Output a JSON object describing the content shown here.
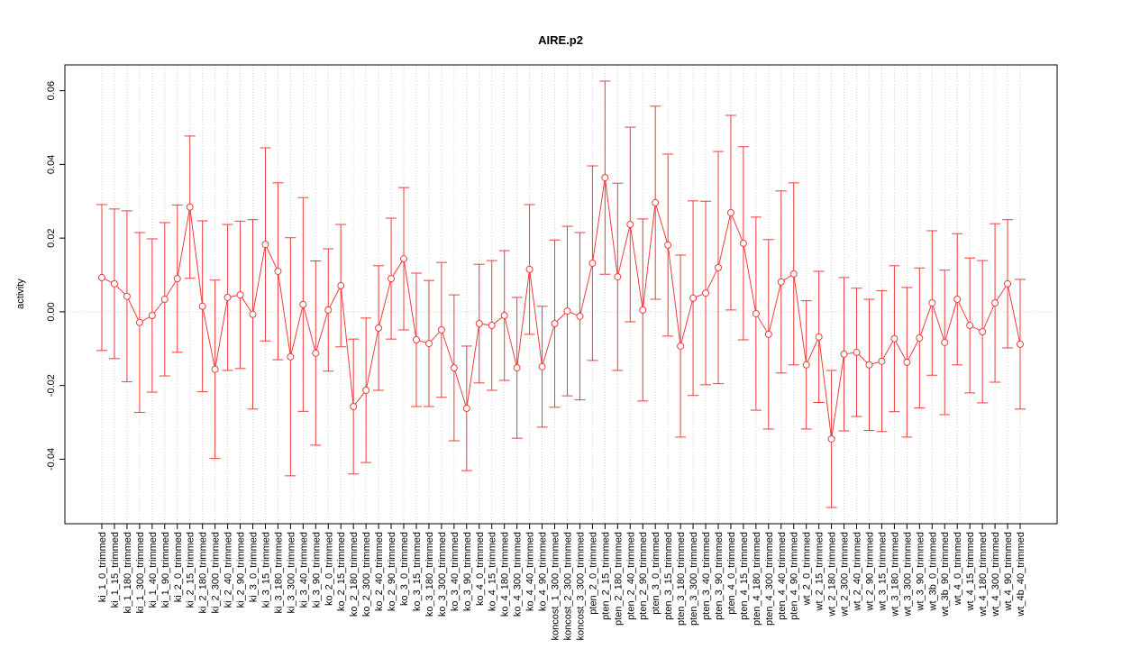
{
  "chart_data": {
    "type": "errorbar_line",
    "title": "AIRE.p2",
    "y_label": "activity",
    "categories": [
      "ki_1_0_trimmed",
      "ki_1_15_trimmed",
      "ki_1_180_trimmed",
      "ki_1_300_trimmed",
      "ki_1_40_trimmed",
      "ki_1_90_trimmed",
      "ki_2_0_trimmed",
      "ki_2_15_trimmed",
      "ki_2_180_trimmed",
      "ki_2_300_trimmed",
      "ki_2_40_trimmed",
      "ki_2_90_trimmed",
      "ki_3_0_trimmed",
      "ki_3_15_trimmed",
      "ki_3_180_trimmed",
      "ki_3_300_trimmed",
      "ki_3_40_trimmed",
      "ki_3_90_trimmed",
      "ko_2_0_trimmed",
      "ko_2_15_trimmed",
      "ko_2_180_trimmed",
      "ko_2_300_trimmed",
      "ko_2_40_trimmed",
      "ko_2_90_trimmed",
      "ko_3_0_trimmed",
      "ko_3_15_trimmed",
      "ko_3_180_trimmed",
      "ko_3_300_trimmed",
      "ko_3_40_trimmed",
      "ko_3_90_trimmed",
      "ko_4_0_trimmed",
      "ko_4_15_trimmed",
      "ko_4_180_trimmed",
      "ko_4_300_trimmed",
      "ko_4_40_trimmed",
      "ko_4_90_trimmed",
      "koncost_1_300_trimmed",
      "koncost_2_300_trimmed",
      "koncost_3_300_trimmed",
      "pten_2_0_trimmed",
      "pten_2_15_trimmed",
      "pten_2_180_trimmed",
      "pten_2_40_trimmed",
      "pten_2_90_trimmed",
      "pten_3_0_trimmed",
      "pten_3_15_trimmed",
      "pten_3_180_trimmed",
      "pten_3_300_trimmed",
      "pten_3_40_trimmed",
      "pten_3_90_trimmed",
      "pten_4_0_trimmed",
      "pten_4_15_trimmed",
      "pten_4_180_trimmed",
      "pten_4_300_trimmed",
      "pten_4_40_trimmed",
      "pten_4_90_trimmed",
      "wt_2_0_trimmed",
      "wt_2_15_trimmed",
      "wt_2_180_trimmed",
      "wt_2_300_trimmed",
      "wt_2_40_trimmed",
      "wt_2_90_trimmed",
      "wt_3_15_trimmed",
      "wt_3_180_trimmed",
      "wt_3_300_trimmed",
      "wt_3_90_trimmed",
      "wt_3b_0_trimmed",
      "wt_3b_90_trimmed",
      "wt_4_0_trimmed",
      "wt_4_15_trimmed",
      "wt_4_180_trimmed",
      "wt_4_300_trimmed",
      "wt_4_90_trimmed",
      "wt_4b_40_trimmed"
    ],
    "values": [
      0.0093,
      0.0076,
      0.0042,
      -0.0029,
      -0.001,
      0.0034,
      0.009,
      0.0284,
      0.0015,
      -0.0156,
      0.0039,
      0.0046,
      -0.0007,
      0.0183,
      0.011,
      -0.0122,
      0.002,
      -0.0112,
      0.0005,
      0.0071,
      -0.0257,
      -0.0213,
      -0.0044,
      0.009,
      0.0144,
      -0.0076,
      -0.0086,
      -0.0049,
      -0.0152,
      -0.0262,
      -0.0032,
      -0.0037,
      -0.001,
      -0.0152,
      0.0115,
      -0.0149,
      -0.0032,
      0.0002,
      -0.0012,
      0.0132,
      0.0364,
      0.0095,
      0.0237,
      0.0005,
      0.0296,
      0.0181,
      -0.0093,
      0.0037,
      0.0051,
      0.012,
      0.0269,
      0.0186,
      -0.0005,
      -0.0061,
      0.0081,
      0.0103,
      -0.0144,
      -0.0068,
      -0.0345,
      -0.0115,
      -0.011,
      -0.0144,
      -0.0134,
      -0.0073,
      -0.0137,
      -0.0071,
      0.0024,
      -0.0083,
      0.0034,
      -0.0037,
      -0.0054,
      0.0024,
      0.0076,
      -0.0088
    ],
    "errors": [
      0.0198,
      0.0203,
      0.0232,
      0.0244,
      0.0208,
      0.0208,
      0.02,
      0.0193,
      0.0232,
      0.0242,
      0.0198,
      0.02,
      0.0257,
      0.0262,
      0.024,
      0.0323,
      0.029,
      0.025,
      0.0166,
      0.0166,
      0.0183,
      0.0196,
      0.0169,
      0.0164,
      0.0193,
      0.0181,
      0.0171,
      0.0183,
      0.0198,
      0.0169,
      0.0161,
      0.0176,
      0.0176,
      0.0191,
      0.0176,
      0.0164,
      0.0227,
      0.023,
      0.0227,
      0.0264,
      0.0262,
      0.0254,
      0.0264,
      0.0247,
      0.0262,
      0.0247,
      0.0247,
      0.0264,
      0.0249,
      0.0315,
      0.0264,
      0.0262,
      0.0262,
      0.0257,
      0.0247,
      0.0247,
      0.0174,
      0.0178,
      0.0186,
      0.0208,
      0.0174,
      0.0178,
      0.0191,
      0.0198,
      0.0203,
      0.019,
      0.0196,
      0.0196,
      0.0178,
      0.0183,
      0.0193,
      0.0215,
      0.0174,
      0.0176
    ],
    "color": "#f03c3c",
    "ylim": [
      -0.0575,
      0.067
    ],
    "yticks": [
      {
        "value": -0.04,
        "label": "-0.04"
      },
      {
        "value": -0.02,
        "label": "-0.02"
      },
      {
        "value": 0,
        "label": "0.00"
      },
      {
        "value": 0.02,
        "label": "0.02"
      },
      {
        "value": 0.04,
        "label": "0.04"
      },
      {
        "value": 0.06,
        "label": "0.06"
      }
    ],
    "reference_line": 0,
    "grid": true
  }
}
